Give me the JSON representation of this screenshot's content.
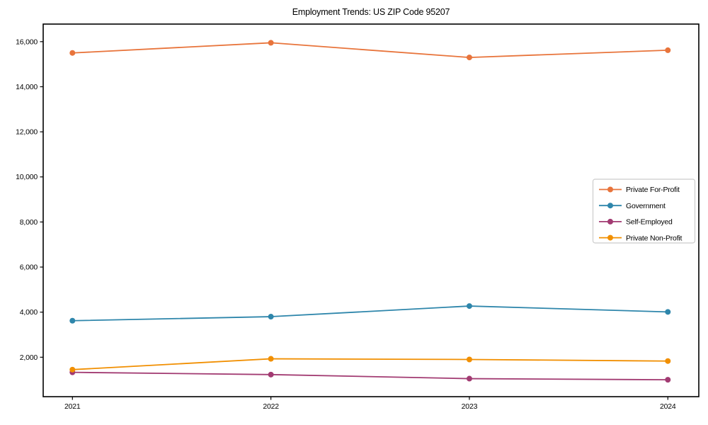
{
  "chart_data": {
    "type": "line",
    "title": "Employment Trends: US ZIP Code 95207",
    "xlabel": "",
    "ylabel": "",
    "x_categories": [
      "2021",
      "2022",
      "2023",
      "2024"
    ],
    "yticks": [
      2000,
      4000,
      6000,
      8000,
      10000,
      12000,
      14000,
      16000
    ],
    "ytick_labels": [
      "2,000",
      "4,000",
      "6,000",
      "8,000",
      "10,000",
      "12,000",
      "14,000",
      "16,000"
    ],
    "ylim": [
      250,
      16780
    ],
    "grid": false,
    "legend_position": "center-right",
    "series": [
      {
        "name": "Private For-Profit",
        "color": "#E8743B",
        "values": [
          15500,
          15950,
          15300,
          15620
        ]
      },
      {
        "name": "Government",
        "color": "#2E86AB",
        "values": [
          3620,
          3800,
          4270,
          4010
        ]
      },
      {
        "name": "Self-Employed",
        "color": "#A23B72",
        "values": [
          1330,
          1230,
          1050,
          1000
        ]
      },
      {
        "name": "Private Non-Profit",
        "color": "#F18F01",
        "values": [
          1450,
          1930,
          1900,
          1830
        ]
      }
    ]
  },
  "colors": {
    "axis": "#000000",
    "legend_border": "#cccccc",
    "background": "#ffffff"
  }
}
